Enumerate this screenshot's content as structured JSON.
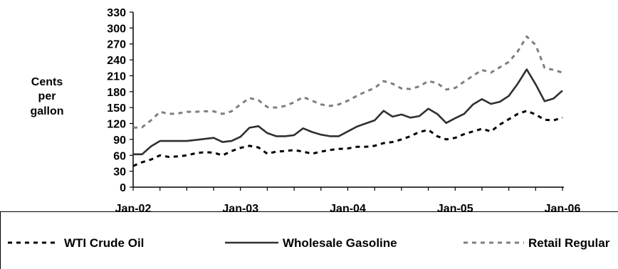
{
  "chart_data": {
    "type": "line",
    "title": "",
    "xlabel": "",
    "ylabel": [
      "Cents",
      "per",
      "gallon"
    ],
    "ylim": [
      0,
      330
    ],
    "yticks": [
      0,
      30,
      60,
      90,
      120,
      150,
      180,
      210,
      240,
      270,
      300,
      330
    ],
    "xlim": [
      0,
      48
    ],
    "xticks": [
      {
        "label": "Jan-02",
        "index": 0
      },
      {
        "label": "Jan-03",
        "index": 12
      },
      {
        "label": "Jan-04",
        "index": 24
      },
      {
        "label": "Jan-05",
        "index": 36
      },
      {
        "label": "Jan-06",
        "index": 48
      }
    ],
    "legend_position": "bottom",
    "grid": false,
    "series": [
      {
        "name": "WTI Crude Oil",
        "style": "dashed",
        "color": "#000000",
        "values": [
          40,
          47,
          52,
          60,
          57,
          58,
          60,
          64,
          66,
          65,
          60,
          68,
          74,
          78,
          75,
          63,
          67,
          68,
          70,
          67,
          63,
          67,
          70,
          72,
          73,
          76,
          76,
          78,
          83,
          85,
          90,
          96,
          104,
          108,
          96,
          90,
          93,
          100,
          105,
          110,
          105,
          118,
          128,
          138,
          144,
          137,
          127,
          126,
          131
        ]
      },
      {
        "name": "Wholesale Gasoline",
        "style": "solid",
        "color": "#303030",
        "values": [
          62,
          62,
          77,
          87,
          87,
          87,
          87,
          89,
          91,
          93,
          85,
          87,
          95,
          112,
          115,
          102,
          96,
          96,
          98,
          111,
          104,
          99,
          96,
          96,
          105,
          114,
          120,
          126,
          144,
          133,
          137,
          131,
          134,
          148,
          138,
          121,
          130,
          138,
          156,
          166,
          157,
          161,
          172,
          195,
          222,
          194,
          162,
          167,
          182
        ]
      },
      {
        "name": "Retail Regular",
        "style": "dashed",
        "color": "#7f7f7f",
        "values": [
          112,
          113,
          126,
          142,
          138,
          139,
          142,
          142,
          143,
          143,
          138,
          143,
          156,
          168,
          164,
          151,
          150,
          153,
          160,
          170,
          163,
          156,
          153,
          156,
          163,
          172,
          180,
          187,
          200,
          195,
          186,
          185,
          190,
          200,
          196,
          184,
          187,
          199,
          210,
          221,
          216,
          226,
          236,
          256,
          284,
          268,
          225,
          221,
          216
        ]
      }
    ]
  }
}
